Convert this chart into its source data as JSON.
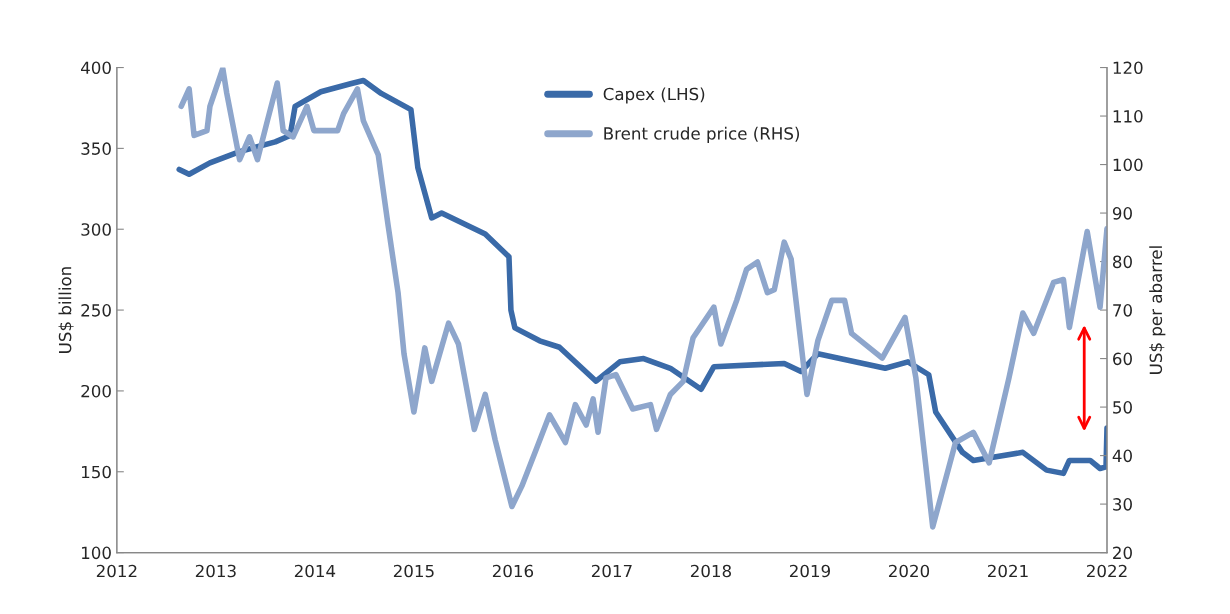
{
  "chart_data": {
    "type": "line",
    "ylabel": "US$ billion",
    "y2label": "US$ per abarrel",
    "xlim": [
      2012,
      2022
    ],
    "xticks": [
      2012,
      2013,
      2014,
      2015,
      2016,
      2017,
      2018,
      2019,
      2020,
      2021,
      2022
    ],
    "ylim": [
      100,
      400
    ],
    "yticks": [
      100,
      150,
      200,
      250,
      300,
      350,
      400
    ],
    "y2lim": [
      20,
      120
    ],
    "y2ticks": [
      20,
      30,
      40,
      50,
      60,
      70,
      80,
      90,
      100,
      110,
      120
    ],
    "grid": false,
    "legend": "top",
    "marker": "none",
    "line_style": "solid",
    "series": [
      {
        "name": "Capex (LHS)",
        "color": "#3a6aa8",
        "axis": "y",
        "x": [
          2012.63,
          2012.73,
          2012.94,
          2013.24,
          2013.6,
          2013.75,
          2013.8,
          2014.06,
          2014.36,
          2014.49,
          2014.67,
          2014.97,
          2015.04,
          2015.18,
          2015.28,
          2015.72,
          2015.96,
          2015.98,
          2016.02,
          2016.27,
          2016.47,
          2016.84,
          2017.08,
          2017.32,
          2017.59,
          2017.9,
          2018.03,
          2018.74,
          2018.91,
          2019.08,
          2019.76,
          2019.99,
          2020.2,
          2020.27,
          2020.54,
          2020.65,
          2021.15,
          2021.39,
          2021.56,
          2021.62,
          2021.83,
          2021.93,
          2021.99,
          2022.0
        ],
        "values": [
          337,
          334,
          341,
          348,
          354,
          358,
          376,
          385,
          390,
          392,
          384,
          374,
          338,
          307,
          310,
          297,
          283,
          250,
          239,
          231,
          227,
          206,
          218,
          220,
          214,
          201,
          215,
          217,
          212,
          223,
          214,
          218,
          210,
          187,
          162,
          157,
          162,
          151,
          149,
          157,
          157,
          152,
          153,
          177
        ]
      },
      {
        "name": "Brent crude price (RHS)",
        "color": "#8ea6cc",
        "axis": "y2",
        "x": [
          2012.65,
          2012.73,
          2012.78,
          2012.91,
          2012.94,
          2013.07,
          2013.11,
          2013.24,
          2013.34,
          2013.42,
          2013.52,
          2013.62,
          2013.68,
          2013.78,
          2013.92,
          2013.99,
          2014.23,
          2014.29,
          2014.43,
          2014.49,
          2014.64,
          2014.74,
          2014.84,
          2014.9,
          2015.0,
          2015.11,
          2015.18,
          2015.35,
          2015.45,
          2015.61,
          2015.72,
          2015.82,
          2015.99,
          2016.09,
          2016.23,
          2016.37,
          2016.53,
          2016.63,
          2016.74,
          2016.81,
          2016.86,
          2016.94,
          2017.04,
          2017.21,
          2017.39,
          2017.45,
          2017.59,
          2017.72,
          2017.82,
          2018.03,
          2018.1,
          2018.26,
          2018.36,
          2018.47,
          2018.57,
          2018.64,
          2018.74,
          2018.81,
          2018.97,
          2019.08,
          2019.22,
          2019.28,
          2019.35,
          2019.42,
          2019.73,
          2019.96,
          2020.07,
          2020.24,
          2020.47,
          2020.65,
          2020.81,
          2021.01,
          2021.15,
          2021.26,
          2021.46,
          2021.56,
          2021.62,
          2021.8,
          2021.93,
          2022.0
        ],
        "values": [
          112,
          115.6,
          106,
          107,
          112,
          119.8,
          114.7,
          101,
          105.7,
          101,
          109,
          116.8,
          107,
          105.7,
          112,
          107,
          107,
          110.5,
          115.6,
          109,
          102,
          87.4,
          73.6,
          61,
          49,
          62.2,
          55.3,
          67.3,
          63,
          45.4,
          52.6,
          43.3,
          29.5,
          33.7,
          41,
          48.4,
          42.7,
          50.5,
          46.3,
          51.7,
          44.8,
          56,
          56.7,
          49.6,
          50.5,
          45.4,
          52.6,
          55.3,
          64.3,
          70.6,
          63,
          72,
          78.4,
          79.9,
          73.6,
          74.2,
          84,
          80.5,
          52.6,
          63.7,
          72,
          72,
          72,
          65.2,
          60.1,
          68.5,
          56,
          25.3,
          42.7,
          44.8,
          38.5,
          56,
          69.4,
          65.2,
          75.7,
          76.3,
          66.4,
          86.2,
          70.6,
          86.8
        ]
      }
    ]
  }
}
